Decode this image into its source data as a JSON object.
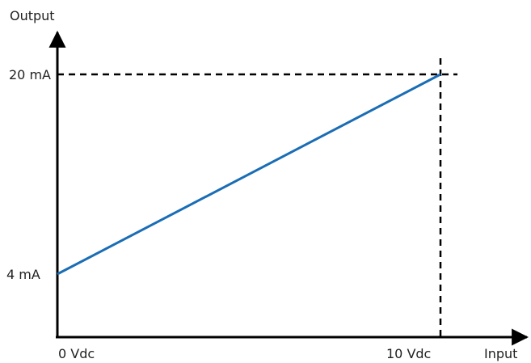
{
  "chart_data": {
    "type": "line",
    "title": "",
    "xlabel": "Input",
    "ylabel": "Output",
    "grid": false,
    "series": [
      {
        "x": [
          "0 Vdc",
          "10 Vdc"
        ],
        "y": [
          4,
          20
        ],
        "color": "#1a6db5"
      }
    ],
    "xticks": [
      {
        "label": "0 Vdc",
        "value": 0
      },
      {
        "label": "10 Vdc",
        "value": 10
      }
    ],
    "yticks": [
      {
        "label": "4 mA",
        "value": 4
      },
      {
        "label": "20 mA",
        "value": 20
      }
    ],
    "reference_lines": {
      "x": 10,
      "y": 20,
      "style": "dashed"
    },
    "colors": {
      "axis": "#000000",
      "line": "#1a6db5",
      "text": "#222222"
    }
  }
}
